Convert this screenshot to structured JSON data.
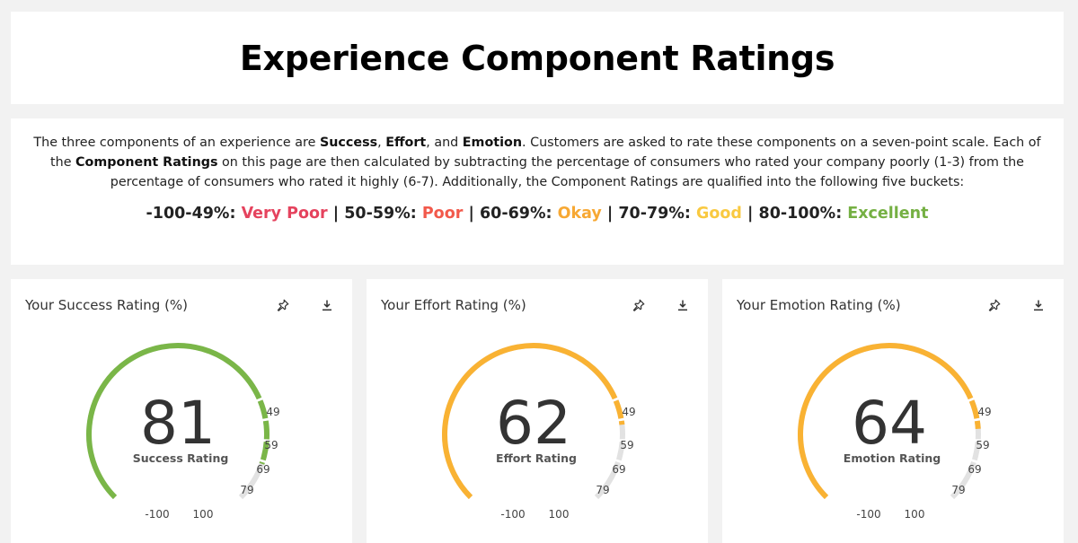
{
  "header": {
    "title": "Experience Component Ratings"
  },
  "description": {
    "p1": "The three components of an experience are ",
    "b1": "Success",
    "p2": ", ",
    "b2": "Effort",
    "p3": ", and ",
    "b3": "Emotion",
    "p4": ". Customers are asked to rate these components on a seven-point scale. Each of the ",
    "b4": "Component Ratings",
    "p5": " on this page are then calculated by subtracting the percentage of consumers who rated your company poorly (1-3) from the percentage of consumers who rated it highly (6-7). Additionally, the Component Ratings are qualified into the following five buckets:"
  },
  "scale": {
    "separator": "|",
    "buckets": [
      {
        "range": "-100-49%:",
        "label": "Very Poor",
        "color": "#e5435e"
      },
      {
        "range": "50-59%:",
        "label": "Poor",
        "color": "#f2594b"
      },
      {
        "range": "60-69%:",
        "label": "Okay",
        "color": "#f7a833"
      },
      {
        "range": "70-79%:",
        "label": "Good",
        "color": "#f9c940"
      },
      {
        "range": "80-100%:",
        "label": "Excellent",
        "color": "#75b043"
      }
    ]
  },
  "gauge_ticks": [
    "-100",
    "100",
    "49",
    "59",
    "69",
    "79"
  ],
  "track_color": "#e2e2e2",
  "icons": {
    "pin": "pin-icon",
    "download": "download-icon"
  },
  "cards": [
    {
      "title": "Your Success Rating (%)",
      "value": 81,
      "label": "Success Rating",
      "color": "#7ab648"
    },
    {
      "title": "Your Effort Rating (%)",
      "value": 62,
      "label": "Effort Rating",
      "color": "#f9b233"
    },
    {
      "title": "Your Emotion Rating (%)",
      "value": 64,
      "label": "Emotion Rating",
      "color": "#f9b233"
    }
  ]
}
